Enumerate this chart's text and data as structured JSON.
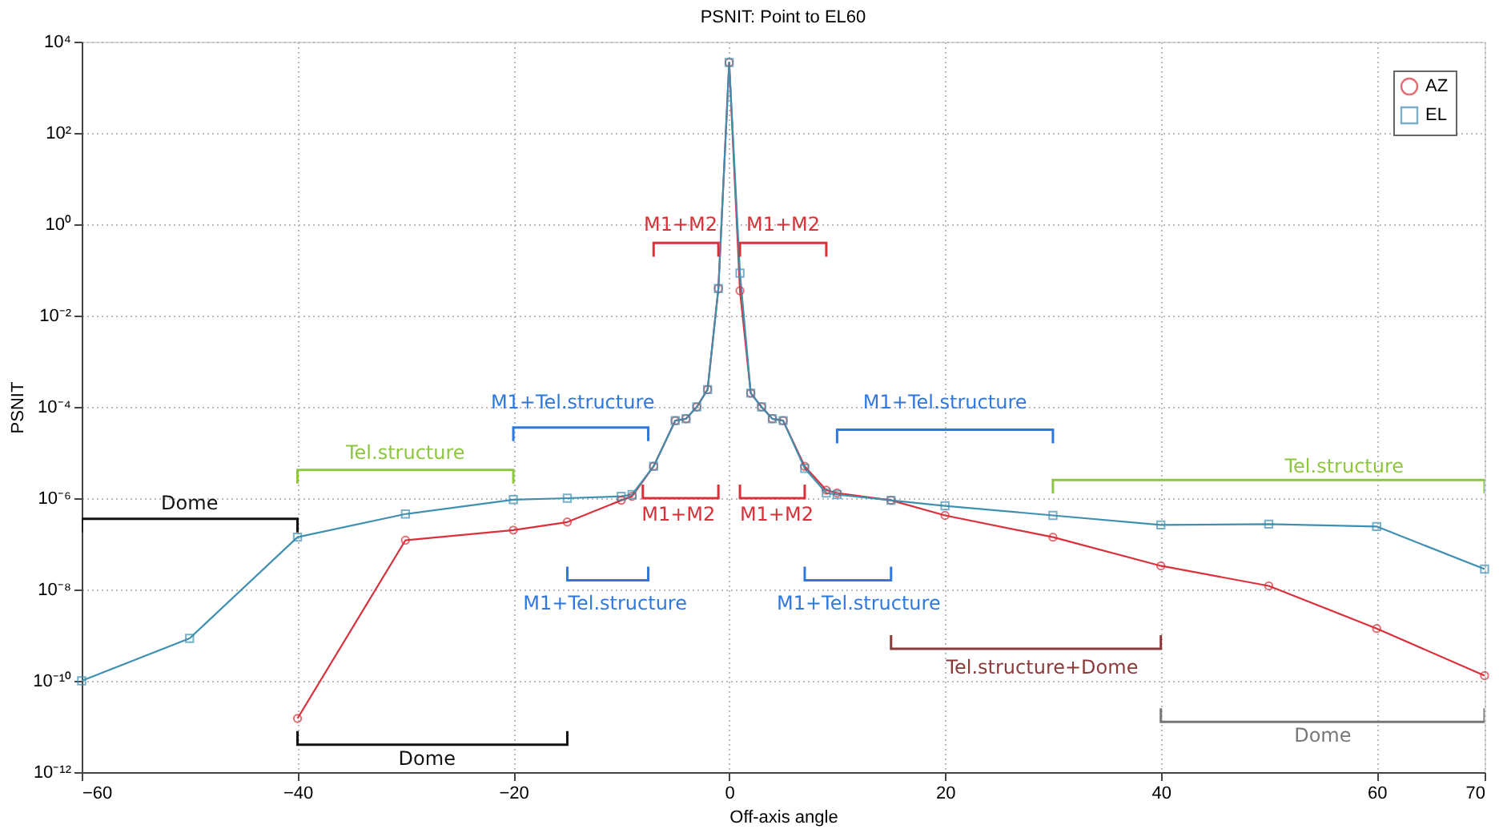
{
  "chart_data": {
    "type": "line",
    "title": "PSNIT: Point to EL60",
    "xlabel": "Off-axis angle",
    "ylabel": "PSNIT",
    "log": "y",
    "grid": true,
    "legend": "top right",
    "line_style": "solid",
    "xlim": [
      -60,
      70
    ],
    "xticks": [
      -60,
      -40,
      -20,
      0,
      20,
      40,
      60,
      70
    ],
    "ylim": [
      1e-12,
      10000
    ],
    "yticks": [
      {
        "value": 1e-12,
        "label": "10⁻¹²"
      },
      {
        "value": 1e-10,
        "label": "10⁻¹⁰"
      },
      {
        "value": 1e-08,
        "label": "10⁻⁸"
      },
      {
        "value": 1e-06,
        "label": "10⁻⁶"
      },
      {
        "value": 0.0001,
        "label": "10⁻⁴"
      },
      {
        "value": 0.01,
        "label": "10⁻²"
      },
      {
        "value": 1,
        "label": "10⁰"
      },
      {
        "value": 100,
        "label": "10²"
      },
      {
        "value": 10000,
        "label": "10⁴"
      }
    ],
    "series": [
      {
        "name": "AZ",
        "color": "#d9303a",
        "marker": "circle",
        "x": [
          -40,
          -30,
          -20,
          -15,
          -10,
          -9,
          -7,
          -5,
          -4,
          -3,
          -2,
          -1,
          0,
          1,
          2,
          3,
          4,
          5,
          7,
          9,
          10,
          15,
          20,
          30,
          40,
          50,
          60,
          70
        ],
        "values": [
          1.5e-11,
          1.2e-07,
          2e-07,
          3e-07,
          9e-07,
          1.1e-06,
          5e-06,
          5e-05,
          5.5e-05,
          0.0001,
          0.00024,
          0.039,
          3500,
          0.035,
          0.0002,
          0.0001,
          5.5e-05,
          5e-05,
          5e-06,
          1.5e-06,
          1.3e-06,
          9e-07,
          4.2e-07,
          1.4e-07,
          3.3e-08,
          1.2e-08,
          1.4e-09,
          1.3e-10
        ]
      },
      {
        "name": "EL",
        "color": "#3f8fb0",
        "marker": "square",
        "x": [
          -60,
          -50,
          -40,
          -30,
          -20,
          -15,
          -10,
          -9,
          -7,
          -5,
          -4,
          -3,
          -2,
          -1,
          0,
          1,
          2,
          3,
          4,
          5,
          7,
          9,
          10,
          15,
          20,
          30,
          40,
          50,
          60,
          70
        ],
        "values": [
          1e-10,
          8.5e-10,
          1.4e-07,
          4.5e-07,
          9.3e-07,
          1e-06,
          1.1e-06,
          1.2e-06,
          5e-06,
          5e-05,
          5.5e-05,
          0.0001,
          0.00024,
          0.039,
          3500,
          0.085,
          0.0002,
          0.0001,
          5.5e-05,
          5e-05,
          4.5e-06,
          1.3e-06,
          1.2e-06,
          9e-07,
          6.8e-07,
          4.2e-07,
          2.6e-07,
          2.7e-07,
          2.4e-07,
          2.8e-08
        ]
      }
    ],
    "annotations": [
      "M1+M2",
      "M1+M2",
      "M1+Tel.structure",
      "M1+Tel.structure",
      "Tel.structure",
      "Tel.structure",
      "Dome",
      "M1+M2",
      "M1+M2",
      "M1+Tel.structure",
      "M1+Tel.structure",
      "Tel.structure+Dome",
      "Dome",
      "Dome"
    ]
  }
}
